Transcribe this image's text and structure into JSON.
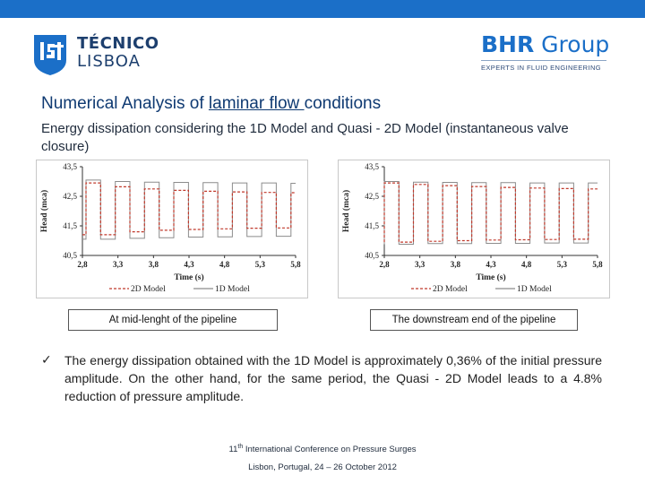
{
  "header": {
    "ist_logo": {
      "line1": "TÉCNICO",
      "line2": "LISBOA"
    },
    "bhr_logo": {
      "name_bold": "BHR",
      "name_rest": " Group",
      "tagline": "EXPERTS IN FLUID ENGINEERING"
    }
  },
  "title": {
    "prefix": "Numerical Analysis of ",
    "underlined": "laminar flow ",
    "suffix": "conditions"
  },
  "subtitle": "Energy dissipation considering the 1D Model and Quasi - 2D Model (instantaneous valve closure)",
  "captions": {
    "left": "At mid-lenght of the pipeline",
    "right": "The downstream end of the pipeline"
  },
  "bullet": {
    "text": "The energy dissipation obtained with the 1D Model is approximately 0,36% of the initial pressure amplitude. On the other hand, for the same period, the Quasi - 2D Model leads to a 4.8% reduction of pressure amplitude."
  },
  "footer": {
    "ordinal": "11",
    "ordinal_suffix": "th",
    "conference": " International Conference on Pressure Surges",
    "place_date": "Lisbon, Portugal, 24 – 26 October 2012"
  },
  "chart_data": [
    {
      "type": "line",
      "xlabel": "Time (s)",
      "ylabel": "Head (mca)",
      "xlim": [
        2.8,
        5.8
      ],
      "ylim": [
        40.5,
        43.5
      ],
      "xticks": [
        "2,8",
        "3,3",
        "3,8",
        "4,3",
        "4,8",
        "5,3",
        "5,8"
      ],
      "yticks": [
        "40,5",
        "41,5",
        "42,5",
        "43,5"
      ],
      "legend": "bottom",
      "series": [
        {
          "name": "2D Model",
          "color": "#c0392b",
          "dashed": true,
          "t0": 2.85,
          "period": 0.412,
          "high": [
            42.95,
            42.82,
            42.75,
            42.7,
            42.67,
            42.65,
            42.63,
            42.62
          ],
          "low": [
            41.2,
            41.3,
            41.35,
            41.38,
            41.4,
            41.42,
            41.43,
            41.45
          ]
        },
        {
          "name": "1D Model",
          "color": "#8c8c8c",
          "dashed": false,
          "t0": 2.85,
          "period": 0.412,
          "high": [
            43.05,
            43.0,
            42.98,
            42.97,
            42.96,
            42.95,
            42.95,
            42.94
          ],
          "low": [
            41.05,
            41.08,
            41.1,
            41.12,
            41.13,
            41.14,
            41.15,
            41.16
          ]
        }
      ]
    },
    {
      "type": "line",
      "xlabel": "Time (s)",
      "ylabel": "Head (mca)",
      "xlim": [
        2.8,
        5.8
      ],
      "ylim": [
        40.5,
        43.5
      ],
      "xticks": [
        "2,8",
        "3,3",
        "3,8",
        "4,3",
        "4,8",
        "5,3",
        "5,8"
      ],
      "yticks": [
        "40,5",
        "41,5",
        "42,5",
        "43,5"
      ],
      "legend": "bottom",
      "series": [
        {
          "name": "2D Model",
          "color": "#c0392b",
          "dashed": true,
          "t0": 2.8,
          "period": 0.41,
          "high": [
            42.95,
            42.9,
            42.86,
            42.83,
            42.8,
            42.78,
            42.76,
            42.75
          ],
          "low": [
            40.95,
            40.98,
            41.0,
            41.02,
            41.03,
            41.04,
            41.05,
            41.05
          ]
        },
        {
          "name": "1D Model",
          "color": "#8c8c8c",
          "dashed": false,
          "t0": 2.8,
          "period": 0.41,
          "high": [
            43.0,
            42.98,
            42.97,
            42.96,
            42.96,
            42.95,
            42.95,
            42.95
          ],
          "low": [
            40.88,
            40.9,
            40.9,
            40.91,
            40.91,
            40.92,
            40.92,
            40.92
          ]
        }
      ]
    }
  ]
}
